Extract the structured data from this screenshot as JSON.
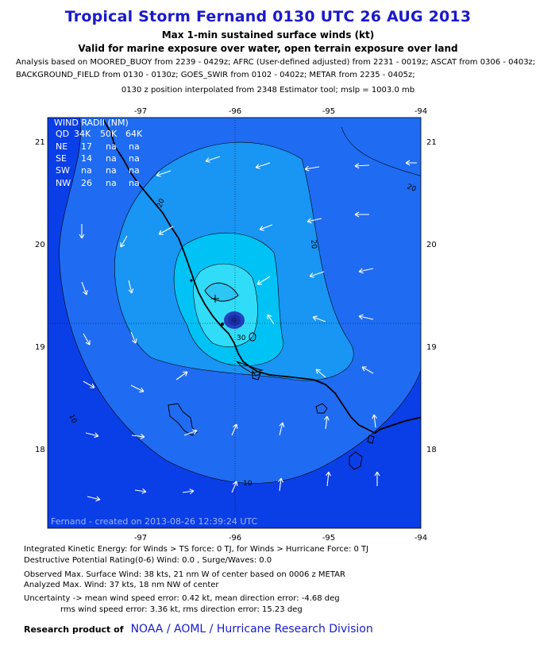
{
  "header": {
    "title": "Tropical Storm Fernand 0130 UTC 26 AUG 2013",
    "subtitle1": "Max 1-min sustained surface winds (kt)",
    "subtitle2": "Valid for marine exposure over water, open terrain exposure over land",
    "analysis_line1": "Analysis based on MOORED_BUOY from 2239 - 0429z; AFRC (User-defined adjusted) from 2231 - 0019z; ASCAT from 0306 - 0403z;",
    "analysis_line2": "BACKGROUND_FIELD from 0130 - 0130z; GOES_SWIR from 0102 - 0402z; METAR from 2235 - 0405z;",
    "analysis_line3": "0130 z position interpolated from 2348 Estimator tool; mslp = 1003.0 mb"
  },
  "map": {
    "lon_ticks": [
      "-97",
      "-96",
      "-95",
      "-94"
    ],
    "lat_ticks": [
      "21",
      "20",
      "19",
      "18"
    ],
    "contour_labels": [
      "20",
      "20",
      "20",
      "10",
      "10",
      "30"
    ],
    "created_label": "Fernand  -  created on 2013-08-26 12:39:24 UTC",
    "colors": {
      "outer": "#0a3ee6",
      "band10": "#1f6cf2",
      "band20": "#1995f3",
      "band30": "#00c2f5",
      "band35": "#31dcf8",
      "core": "#2340c0",
      "coast": "#000000",
      "arrow": "#ffffff"
    },
    "wind_radii": {
      "title": "WIND RADII (NM)",
      "header": [
        "QD",
        "34K",
        "50K",
        "64K"
      ],
      "rows": [
        [
          "NE",
          "17",
          "na",
          "na"
        ],
        [
          "SE",
          "14",
          "na",
          "na"
        ],
        [
          "SW",
          "na",
          "na",
          "na"
        ],
        [
          "NW",
          "26",
          "na",
          "na"
        ]
      ]
    }
  },
  "footer": {
    "ike": "Integrated Kinetic Energy: for Winds > TS force: 0 TJ, for Winds > Hurricane Force: 0 TJ",
    "dpr": "Destructive Potential Rating(0-6)   Wind: 0.0 , Surge/Waves: 0.0",
    "observed": "Observed Max. Surface Wind: 38 kts, 21 nm W of center based on 0006 z METAR",
    "analyzed": "Analyzed Max. Wind: 37 kts, 18 nm  NW of center",
    "uncertainty1": "Uncertainty -> mean wind speed error: 0.42 kt, mean direction error:  -4.68 deg",
    "uncertainty2": "rms wind speed error: 3.36 kt, rms direction error: 15.23 deg",
    "credit_label": "Research product of",
    "credit_org": "NOAA  /  AOML  /  Hurricane Research Division"
  }
}
